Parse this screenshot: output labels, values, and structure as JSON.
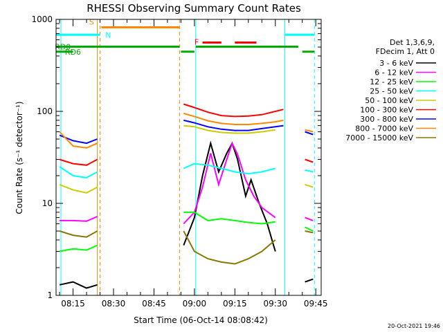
{
  "chart_data": {
    "type": "line",
    "title": "RHESSI Observing Summary Count Rates",
    "xlabel": "Start Time (06-Oct-14 08:08:42)",
    "ylabel": "Count Rate (s⁻¹ detector⁻¹)",
    "y_scale": "log",
    "ylim": [
      1,
      1000
    ],
    "xlim": [
      "08:08:42",
      "09:47:00"
    ],
    "x_ticks": [
      "08:15",
      "08:30",
      "08:45",
      "09:00",
      "09:15",
      "09:30",
      "09:45"
    ],
    "y_ticks": [
      "1",
      "10",
      "100",
      "1000"
    ],
    "grid": false,
    "legend_header": [
      "Det 1,3,6,9,",
      "FDecim 1, Att 0"
    ],
    "footer_date": "20-Oct-2021 19:46",
    "data_gaps": [
      [
        "08:25:30",
        "08:55:00"
      ],
      [
        "09:33:30",
        "09:40:00"
      ]
    ],
    "series": [
      {
        "name": "3 - 6 keV",
        "color": "#000000",
        "points": [
          [
            "08:10",
            1.3
          ],
          [
            "08:15",
            1.4
          ],
          [
            "08:20",
            1.2
          ],
          [
            "08:24",
            1.3
          ],
          [
            "08:56",
            3.5
          ],
          [
            "09:00",
            7
          ],
          [
            "09:03",
            20
          ],
          [
            "09:06",
            45
          ],
          [
            "09:09",
            22
          ],
          [
            "09:12",
            35
          ],
          [
            "09:14",
            45
          ],
          [
            "09:16",
            30
          ],
          [
            "09:19",
            12
          ],
          [
            "09:21",
            18
          ],
          [
            "09:24",
            10
          ],
          [
            "09:27",
            6
          ],
          [
            "09:30",
            3
          ],
          [
            "09:41",
            1.4
          ],
          [
            "09:44",
            1.5
          ]
        ]
      },
      {
        "name": "6 - 12 keV",
        "color": "#ff00ff",
        "points": [
          [
            "08:10",
            6.5
          ],
          [
            "08:15",
            6.5
          ],
          [
            "08:20",
            6.4
          ],
          [
            "08:24",
            7.2
          ],
          [
            "08:56",
            6
          ],
          [
            "09:00",
            8
          ],
          [
            "09:03",
            15
          ],
          [
            "09:06",
            35
          ],
          [
            "09:09",
            16
          ],
          [
            "09:12",
            30
          ],
          [
            "09:14",
            45
          ],
          [
            "09:16",
            34
          ],
          [
            "09:19",
            18
          ],
          [
            "09:22",
            12
          ],
          [
            "09:25",
            9
          ],
          [
            "09:30",
            7
          ],
          [
            "09:41",
            7
          ],
          [
            "09:44",
            6.5
          ]
        ]
      },
      {
        "name": "12 - 25 keV",
        "color": "#00ff00",
        "points": [
          [
            "08:10",
            3
          ],
          [
            "08:15",
            3.2
          ],
          [
            "08:20",
            3.1
          ],
          [
            "08:24",
            3.5
          ],
          [
            "08:56",
            8
          ],
          [
            "09:00",
            8
          ],
          [
            "09:05",
            6.5
          ],
          [
            "09:10",
            6.8
          ],
          [
            "09:15",
            6.5
          ],
          [
            "09:20",
            6.2
          ],
          [
            "09:25",
            6
          ],
          [
            "09:30",
            6.3
          ],
          [
            "09:41",
            5.5
          ],
          [
            "09:44",
            5
          ]
        ]
      },
      {
        "name": "25 - 50 keV",
        "color": "#00ffff",
        "points": [
          [
            "08:10",
            25
          ],
          [
            "08:15",
            20
          ],
          [
            "08:20",
            19
          ],
          [
            "08:24",
            22
          ],
          [
            "08:56",
            24
          ],
          [
            "09:00",
            27
          ],
          [
            "09:05",
            26
          ],
          [
            "09:10",
            24
          ],
          [
            "09:15",
            22
          ],
          [
            "09:20",
            21
          ],
          [
            "09:25",
            22
          ],
          [
            "09:30",
            24
          ],
          [
            "09:41",
            23
          ],
          [
            "09:44",
            22
          ]
        ]
      },
      {
        "name": "50 - 100 keV",
        "color": "#cccc00",
        "points": [
          [
            "08:10",
            16
          ],
          [
            "08:15",
            14
          ],
          [
            "08:20",
            13
          ],
          [
            "08:24",
            15
          ],
          [
            "08:56",
            70
          ],
          [
            "09:00",
            68
          ],
          [
            "09:05",
            62
          ],
          [
            "09:10",
            59
          ],
          [
            "09:15",
            58
          ],
          [
            "09:20",
            58
          ],
          [
            "09:25",
            60
          ],
          [
            "09:30",
            63
          ],
          [
            "09:41",
            16
          ],
          [
            "09:44",
            15
          ]
        ]
      },
      {
        "name": "100 - 300 keV",
        "color": "#ff0000",
        "points": [
          [
            "08:10",
            30
          ],
          [
            "08:15",
            27
          ],
          [
            "08:20",
            26
          ],
          [
            "08:24",
            30
          ],
          [
            "08:56",
            120
          ],
          [
            "09:00",
            110
          ],
          [
            "09:05",
            98
          ],
          [
            "09:10",
            90
          ],
          [
            "09:15",
            88
          ],
          [
            "09:20",
            89
          ],
          [
            "09:25",
            92
          ],
          [
            "09:30",
            100
          ],
          [
            "09:33",
            105
          ],
          [
            "09:41",
            30
          ],
          [
            "09:44",
            28
          ]
        ]
      },
      {
        "name": "300 - 800 keV",
        "color": "#0000ff",
        "points": [
          [
            "08:10",
            55
          ],
          [
            "08:15",
            48
          ],
          [
            "08:20",
            45
          ],
          [
            "08:24",
            50
          ],
          [
            "08:56",
            80
          ],
          [
            "09:00",
            75
          ],
          [
            "09:05",
            68
          ],
          [
            "09:10",
            64
          ],
          [
            "09:15",
            62
          ],
          [
            "09:20",
            62
          ],
          [
            "09:25",
            65
          ],
          [
            "09:30",
            68
          ],
          [
            "09:33",
            70
          ],
          [
            "09:41",
            60
          ],
          [
            "09:44",
            56
          ]
        ]
      },
      {
        "name": "800 - 7000 keV",
        "color": "#ff8800",
        "points": [
          [
            "08:10",
            60
          ],
          [
            "08:15",
            42
          ],
          [
            "08:20",
            40
          ],
          [
            "08:24",
            45
          ],
          [
            "08:56",
            95
          ],
          [
            "09:00",
            88
          ],
          [
            "09:05",
            79
          ],
          [
            "09:10",
            74
          ],
          [
            "09:15",
            72
          ],
          [
            "09:20",
            72
          ],
          [
            "09:25",
            74
          ],
          [
            "09:30",
            77
          ],
          [
            "09:33",
            80
          ],
          [
            "09:41",
            63
          ],
          [
            "09:44",
            60
          ]
        ]
      },
      {
        "name": "7000 - 15000 keV",
        "color": "#887700",
        "points": [
          [
            "08:10",
            5
          ],
          [
            "08:15",
            4.5
          ],
          [
            "08:20",
            4.3
          ],
          [
            "08:24",
            5
          ],
          [
            "08:56",
            5
          ],
          [
            "09:00",
            3
          ],
          [
            "09:05",
            2.5
          ],
          [
            "09:10",
            2.3
          ],
          [
            "09:15",
            2.2
          ],
          [
            "09:20",
            2.5
          ],
          [
            "09:25",
            3
          ],
          [
            "09:30",
            4
          ],
          [
            "09:41",
            5
          ],
          [
            "09:44",
            4.8
          ]
        ]
      }
    ],
    "status_bars": [
      {
        "label": "S",
        "color": "#ff8800",
        "level": "S",
        "segments": [
          [
            "08:25:30",
            "08:54:30"
          ]
        ]
      },
      {
        "label": "N",
        "color": "#00ffff",
        "level": "N",
        "segments": [
          [
            "08:08:42",
            "08:25:00"
          ],
          [
            "09:33:30",
            "09:44:30"
          ]
        ]
      },
      {
        "label": "F",
        "color": "#ff0000",
        "level": "F",
        "segments": [
          [
            "09:03",
            "09:10"
          ],
          [
            "09:15",
            "09:23"
          ]
        ]
      },
      {
        "label": "RD0",
        "color": "#00aa00",
        "level": "RD0",
        "segments": [
          [
            "08:08:42",
            "08:54:30"
          ],
          [
            "09:00:30",
            "09:38:30"
          ]
        ]
      },
      {
        "label": "RD6",
        "color": "#00aa00",
        "level": "RD6",
        "segments": [
          [
            "08:08:42",
            "08:15"
          ],
          [
            "08:55",
            "09:00"
          ],
          [
            "09:40",
            "09:44:30"
          ]
        ]
      }
    ],
    "vertical_markers": [
      {
        "time": "08:25:00",
        "color": "#ff8800",
        "style": "dashed"
      },
      {
        "time": "08:54:30",
        "color": "#ff8800",
        "style": "dashed"
      },
      {
        "time": "09:44:30",
        "color": "#00ffff",
        "style": "dashed"
      },
      {
        "time": "08:10:30",
        "color": "#00ffff",
        "style": "solid"
      },
      {
        "time": "08:24:00",
        "color": "#ff8800",
        "style": "solid"
      },
      {
        "time": "09:00:30",
        "color": "#00ffff",
        "style": "solid"
      },
      {
        "time": "09:33:30",
        "color": "#00ffff",
        "style": "solid"
      }
    ]
  }
}
